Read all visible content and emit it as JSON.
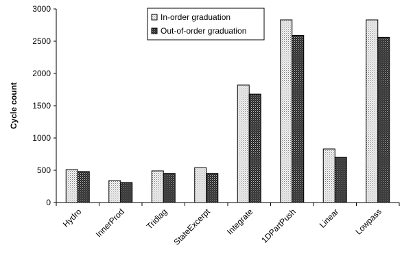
{
  "chart_data": {
    "type": "bar",
    "title": "",
    "xlabel": "",
    "ylabel": "Cycle count",
    "ylim": [
      0,
      3000
    ],
    "yticks": [
      0,
      500,
      1000,
      1500,
      2000,
      2500,
      3000
    ],
    "grid": false,
    "legend_position": "top-center",
    "categories": [
      "Hydro",
      "InnerProd",
      "Tridiag",
      "StateExcerpt",
      "Integrate",
      "1DPartPush",
      "Linear",
      "Lowpass"
    ],
    "series": [
      {
        "name": "In-order graduation",
        "pattern": "light-dotted",
        "color": "#e2e2e2",
        "values": [
          510,
          340,
          490,
          540,
          1820,
          2830,
          830,
          2830
        ]
      },
      {
        "name": "Out-of-order graduation",
        "pattern": "dark-dotted",
        "color": "#3a3a3a",
        "values": [
          480,
          310,
          450,
          450,
          1680,
          2590,
          700,
          2560
        ]
      }
    ]
  }
}
